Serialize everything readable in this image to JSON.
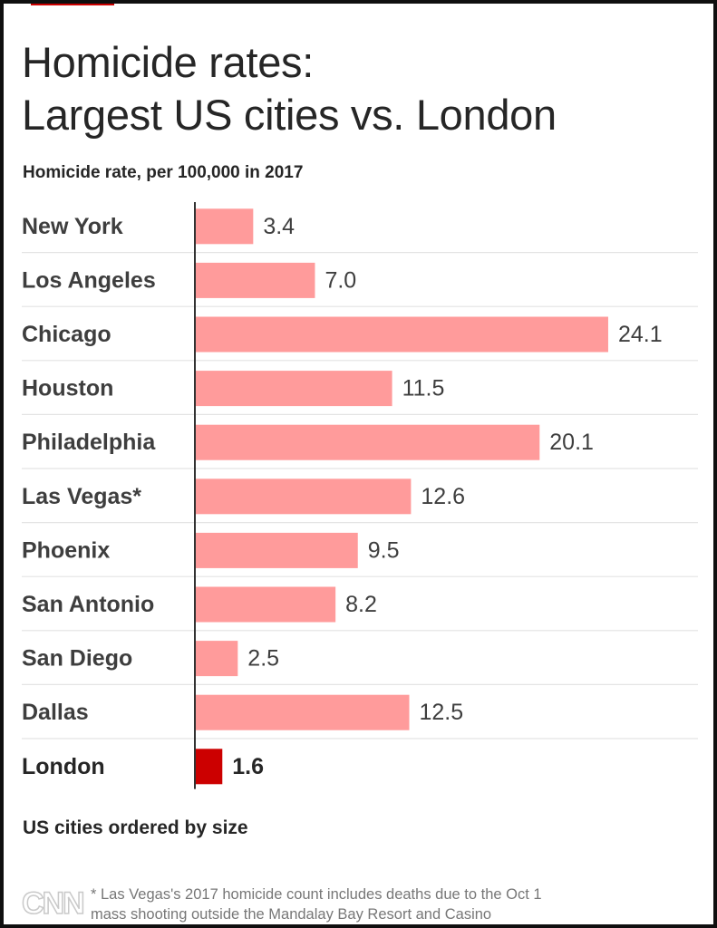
{
  "header": {
    "title_line1": "Homicide rates:",
    "title_line2": "Largest US cities vs. London",
    "subtitle": "Homicide rate, per 100,000 in 2017"
  },
  "chart_data": {
    "type": "bar",
    "orientation": "horizontal",
    "title": "Homicide rates: Largest US cities vs. London",
    "subtitle": "Homicide rate, per 100,000 in 2017",
    "categories": [
      "New York",
      "Los Angeles",
      "Chicago",
      "Houston",
      "Philadelphia",
      "Las Vegas*",
      "Phoenix",
      "San Antonio",
      "San Diego",
      "Dallas",
      "London"
    ],
    "values": [
      3.4,
      7.0,
      24.1,
      11.5,
      20.1,
      12.6,
      9.5,
      8.2,
      2.5,
      12.5,
      1.6
    ],
    "value_labels": [
      "3.4",
      "7.0",
      "24.1",
      "11.5",
      "20.1",
      "12.6",
      "9.5",
      "8.2",
      "2.5",
      "12.5",
      "1.6"
    ],
    "highlight": "London",
    "colors": {
      "us_city": "#ff9b9b",
      "london": "#cc0000",
      "gridline": "#e4e4e4",
      "axis": "#333333"
    },
    "grid": "row separators",
    "legend": "none"
  },
  "footer": {
    "ordering_note": "US cities ordered by size",
    "logo_text": "CNN",
    "footnote_line1": "* Las Vegas's 2017 homicide count includes deaths due to the Oct 1",
    "footnote_line2": "mass shooting outside the Mandalay Bay Resort and Casino"
  }
}
